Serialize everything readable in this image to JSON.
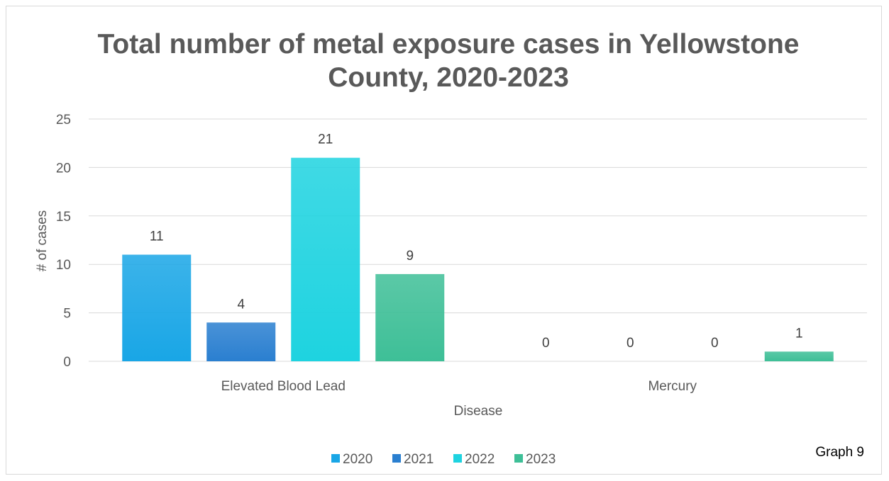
{
  "chart_data": {
    "type": "bar",
    "title_lines": [
      "Total number of metal exposure cases in Yellowstone",
      "County, 2020-2023"
    ],
    "xlabel": "Disease",
    "ylabel": "# of cases",
    "categories": [
      "Elevated Blood Lead",
      "Mercury"
    ],
    "series": [
      {
        "name": "2020",
        "values": [
          11,
          0
        ],
        "color": "#19A6E6"
      },
      {
        "name": "2021",
        "values": [
          4,
          0
        ],
        "color": "#2A7FD0"
      },
      {
        "name": "2022",
        "values": [
          21,
          0
        ],
        "color": "#1ED3E0"
      },
      {
        "name": "2023",
        "values": [
          9,
          1
        ],
        "color": "#3EBF97"
      }
    ],
    "ylim": [
      0,
      25
    ],
    "yticks": [
      0,
      5,
      10,
      15,
      20,
      25
    ],
    "grid": true,
    "legend": "bottom",
    "data_labels": true
  },
  "annotation": "Graph 9"
}
